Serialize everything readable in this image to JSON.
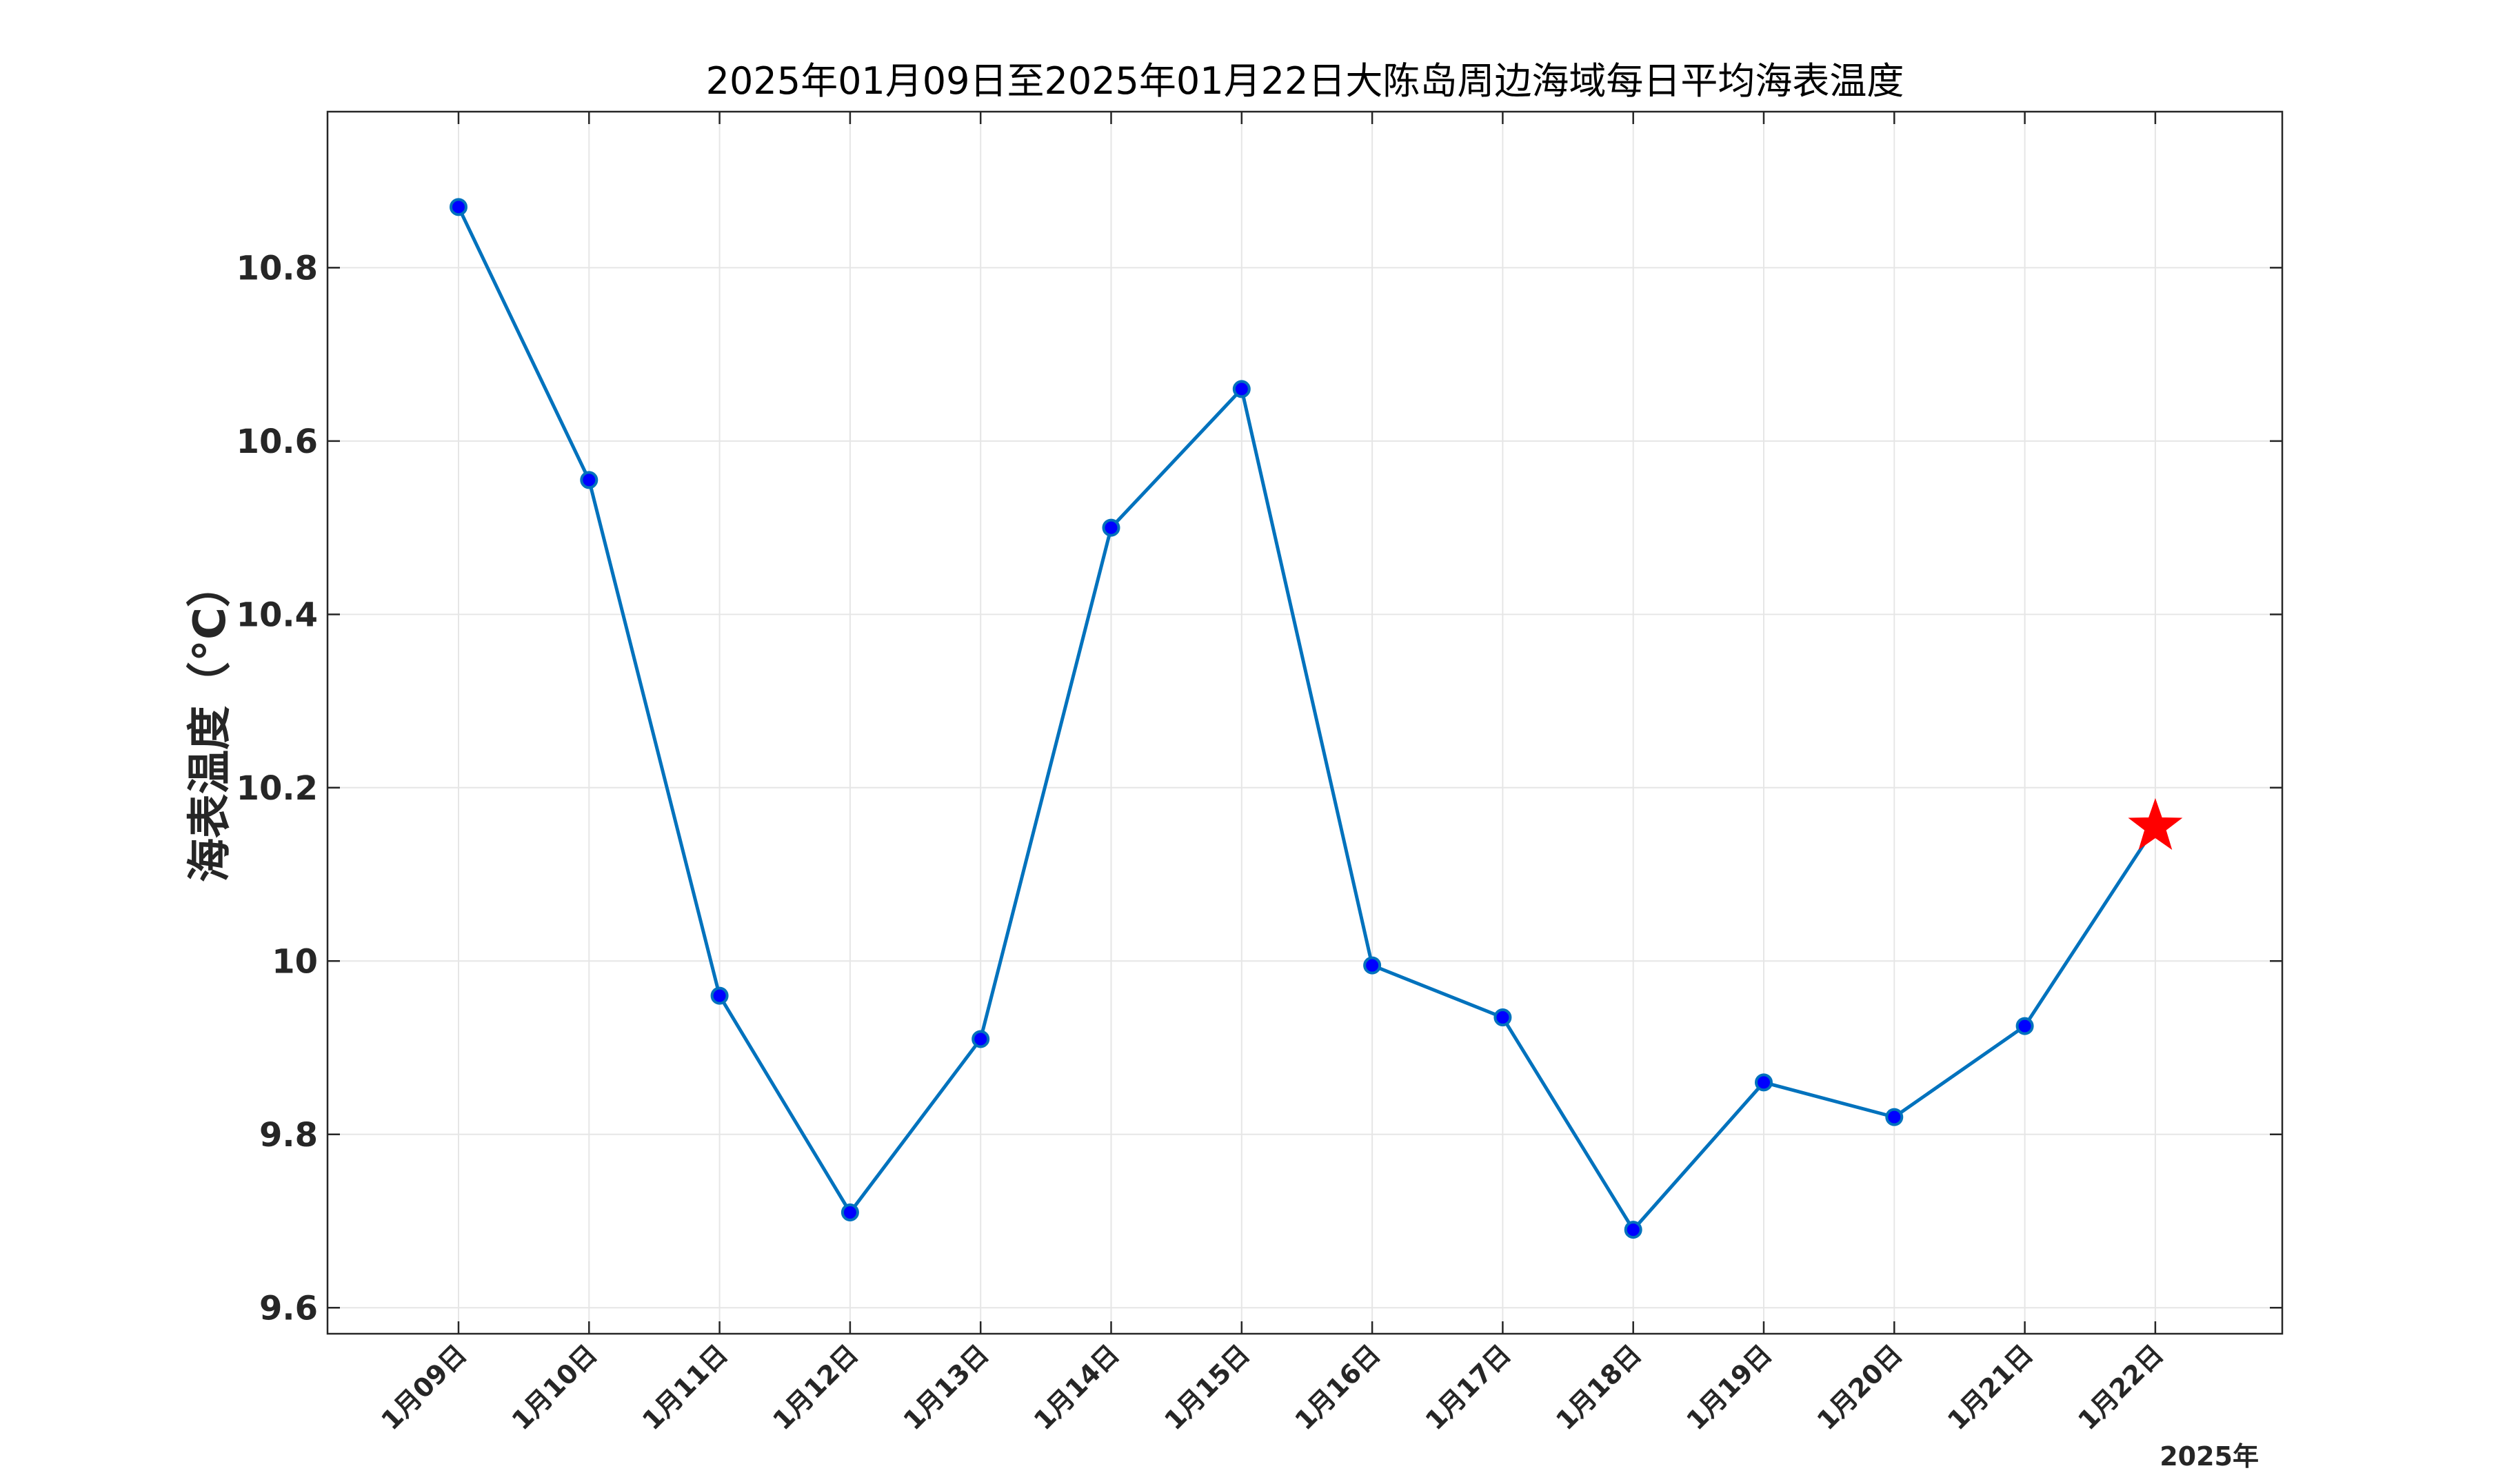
{
  "chart_data": {
    "type": "line",
    "title": "2025年01月09日至2025年01月22日大陈岛周边海域每日平均海表温度",
    "xlabel": "",
    "ylabel": "海表温度（°C）",
    "x_axis_suffix": "2025年",
    "categories": [
      "1月09日",
      "1月10日",
      "1月11日",
      "1月12日",
      "1月13日",
      "1月14日",
      "1月15日",
      "1月16日",
      "1月17日",
      "1月18日",
      "1月19日",
      "1月20日",
      "1月21日",
      "1月22日"
    ],
    "series": [
      {
        "values": [
          10.87,
          10.555,
          9.96,
          9.71,
          9.91,
          10.5,
          10.66,
          9.995,
          9.935,
          9.69,
          9.86,
          9.82,
          9.925,
          10.155
        ],
        "color": "#0072BD",
        "marker_color": "#0000FF",
        "last_point_marker": "star",
        "last_point_color": "#FF0000"
      }
    ],
    "ylim": [
      9.57,
      10.98
    ],
    "yticks": [
      9.6,
      9.8,
      10,
      10.2,
      10.4,
      10.6,
      10.8
    ],
    "ytick_labels": [
      "9.6",
      "9.8",
      "10",
      "10.2",
      "10.4",
      "10.6",
      "10.8"
    ],
    "grid": true,
    "legend": "none"
  }
}
